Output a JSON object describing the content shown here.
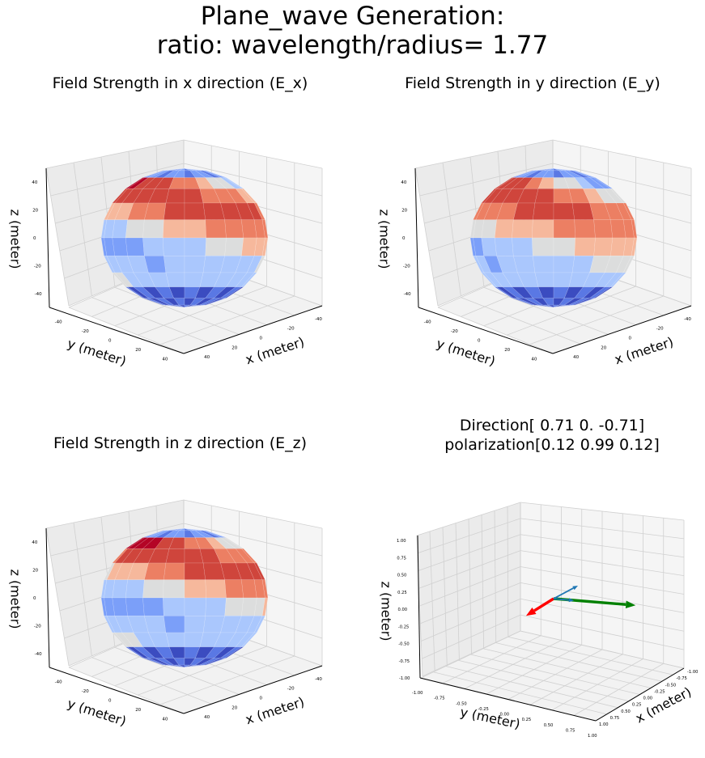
{
  "figure": {
    "title_line1": "Plane_wave Generation:",
    "title_line2": "ratio: wavelength/radius= 1.77"
  },
  "chart_data": [
    {
      "type": "surface3d",
      "title": "Field Strength in x direction (E_x)",
      "xlabel": "x (meter)",
      "ylabel": "y (meter)",
      "zlabel": "z (meter)",
      "xlim": [
        -50,
        50
      ],
      "ylim": [
        -50,
        50
      ],
      "zlim": [
        -50,
        50
      ],
      "xticks": [
        -40,
        -20,
        0,
        20,
        40
      ],
      "yticks": [
        -40,
        -20,
        0,
        20,
        40
      ],
      "zticks": [
        -40,
        -20,
        0,
        20,
        40
      ],
      "surface": "sphere",
      "radius": 50,
      "colormap": "coolwarm",
      "grid": true,
      "color_bands_by_latitude": [
        "blue",
        "blue",
        "blue",
        "light-blue",
        "white",
        "salmon",
        "red",
        "red",
        "salmon",
        "light-blue",
        "blue"
      ]
    },
    {
      "type": "surface3d",
      "title": "Field Strength in y direction (E_y)",
      "xlabel": "x (meter)",
      "ylabel": "y (meter)",
      "zlabel": "z (meter)",
      "xlim": [
        -50,
        50
      ],
      "ylim": [
        -50,
        50
      ],
      "zlim": [
        -50,
        50
      ],
      "xticks": [
        -40,
        -20,
        0,
        20,
        40
      ],
      "yticks": [
        -40,
        -20,
        0,
        20,
        40
      ],
      "zticks": [
        -40,
        -20,
        0,
        20,
        40
      ],
      "surface": "sphere",
      "radius": 50,
      "colormap": "coolwarm",
      "grid": true
    },
    {
      "type": "surface3d",
      "title": "Field Strength in z direction (E_z)",
      "xlabel": "x (meter)",
      "ylabel": "y (meter)",
      "zlabel": "z (meter)",
      "xlim": [
        -50,
        50
      ],
      "ylim": [
        -50,
        50
      ],
      "zlim": [
        -50,
        50
      ],
      "xticks": [
        -40,
        -20,
        0,
        20,
        40
      ],
      "yticks": [
        -40,
        -20,
        0,
        20,
        40
      ],
      "zticks": [
        -40,
        -20,
        0,
        20,
        40
      ],
      "surface": "sphere",
      "radius": 50,
      "colormap": "coolwarm",
      "grid": true
    },
    {
      "type": "quiver3d",
      "title_line1": "Direction[ 0.71  0.   -0.71]",
      "title_line2": "polarization[0.12 0.99 0.12]",
      "xlabel": "x (meter)",
      "ylabel": "y (meter)",
      "zlabel": "z (meter)",
      "xlim": [
        -1,
        1
      ],
      "ylim": [
        -1,
        1
      ],
      "zlim": [
        -1,
        1
      ],
      "xticks": [
        "-1.00",
        "-0.75",
        "-0.50",
        "-0.25",
        "0.00",
        "0.25",
        "0.50",
        "0.75",
        "1.00"
      ],
      "yticks": [
        "-1.00",
        "-0.75",
        "-0.50",
        "-0.25",
        "0.00",
        "0.25",
        "0.50",
        "0.75",
        "1.00"
      ],
      "zticks": [
        "-1.00",
        "-0.75",
        "-0.50",
        "-0.25",
        "0.00",
        "0.25",
        "0.50",
        "0.75",
        "1.00"
      ],
      "grid": true,
      "vectors": [
        {
          "color": "#ff0000",
          "origin": [
            0,
            0,
            0
          ],
          "vector": [
            0.71,
            0.0,
            -0.71
          ]
        },
        {
          "color": "#008000",
          "origin": [
            0,
            0,
            0
          ],
          "vector": [
            0.12,
            0.99,
            0.12
          ]
        },
        {
          "color": "#1f77b4",
          "origin": [
            0,
            0,
            0
          ],
          "vector": [
            0.5,
            0.5,
            0.0
          ]
        },
        {
          "color": "#1f77b4",
          "origin": [
            0,
            0,
            0
          ],
          "vector": [
            -0.3,
            0.1,
            0.2
          ]
        }
      ]
    }
  ]
}
